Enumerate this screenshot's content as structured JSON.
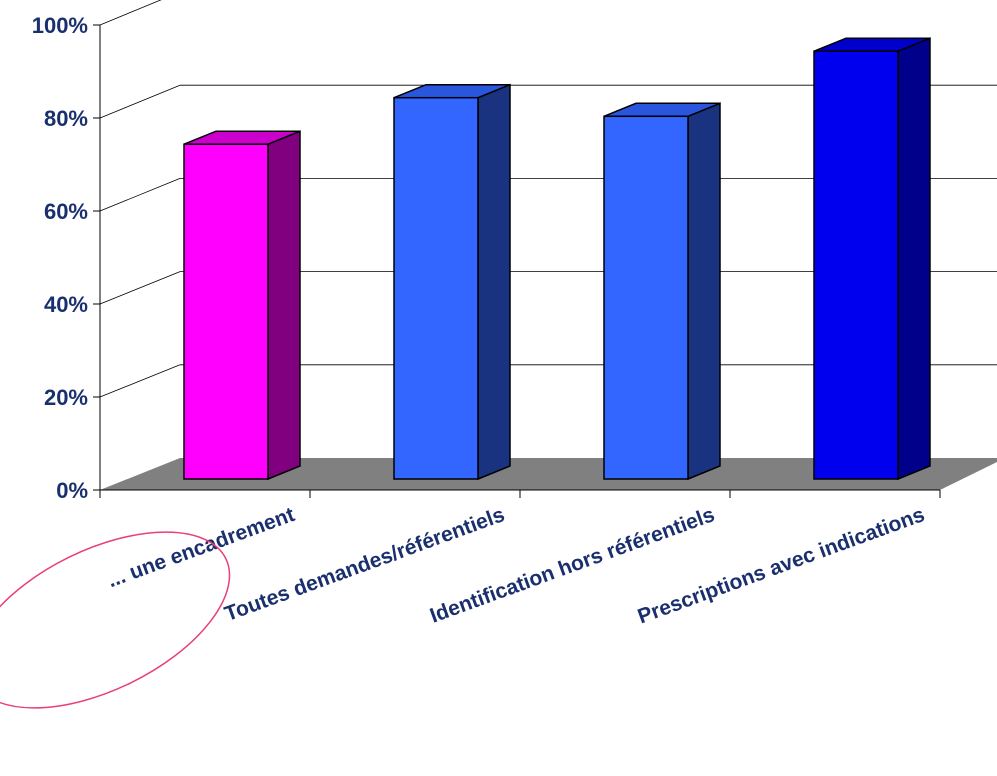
{
  "chart_data": {
    "type": "bar",
    "title": "",
    "xlabel": "",
    "ylabel": "",
    "categories": [
      "... une encadrement",
      "Toutes demandes/référentiels",
      "Identification  hors référentiels",
      "Prescriptions avec indications"
    ],
    "values": [
      72,
      82,
      78,
      92
    ],
    "unit": "%",
    "ylim": [
      0,
      100
    ],
    "yticks": [
      "0%",
      "20%",
      "40%",
      "60%",
      "80%",
      "100%"
    ],
    "grid": true,
    "legend": "none",
    "three_d": true,
    "colors": {
      "highlight_front": "#ff00ff",
      "highlight_side": "#800080",
      "highlight_top": "#cc00cc",
      "bar_front": [
        "#ff00ff",
        "#3366ff",
        "#3366ff",
        "#0000ee"
      ],
      "bar_side": [
        "#800080",
        "#1a3380",
        "#1a3380",
        "#00008b"
      ],
      "bar_top": [
        "#cc00cc",
        "#2a55dd",
        "#2a55dd",
        "#0000cc"
      ],
      "floor": "#808080",
      "axis_text": "#1a2f6e",
      "ellipse": "#e8407a"
    }
  }
}
